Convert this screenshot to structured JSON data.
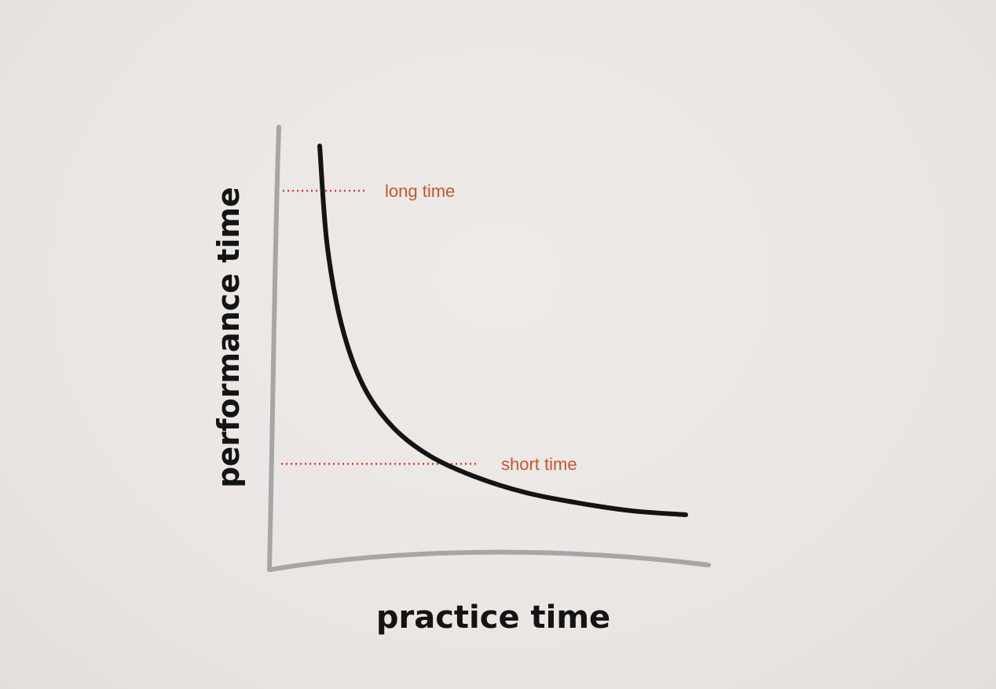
{
  "chart_data": {
    "type": "line",
    "xlabel": "practice time",
    "ylabel": "performance time",
    "grid": false,
    "series": [
      {
        "values_description": "",
        "x": [
          0.0,
          0.2,
          0.6,
          1.2,
          2.0,
          3.0,
          4.2,
          5.6,
          7.0,
          8.5,
          10.0
        ],
        "y": [
          10.0,
          7.6,
          5.6,
          4.1,
          3.1,
          2.4,
          1.9,
          1.5,
          1.25,
          1.05,
          0.95
        ]
      }
    ],
    "reference_lines": [
      {
        "label": "long time",
        "y": 8.9
      },
      {
        "label": "short time",
        "y": 2.2
      }
    ],
    "colors": {
      "curve": "#141414",
      "axis": "#a6a6a6",
      "reference": "#d83a3a",
      "reference_label": "#c8562e"
    }
  }
}
